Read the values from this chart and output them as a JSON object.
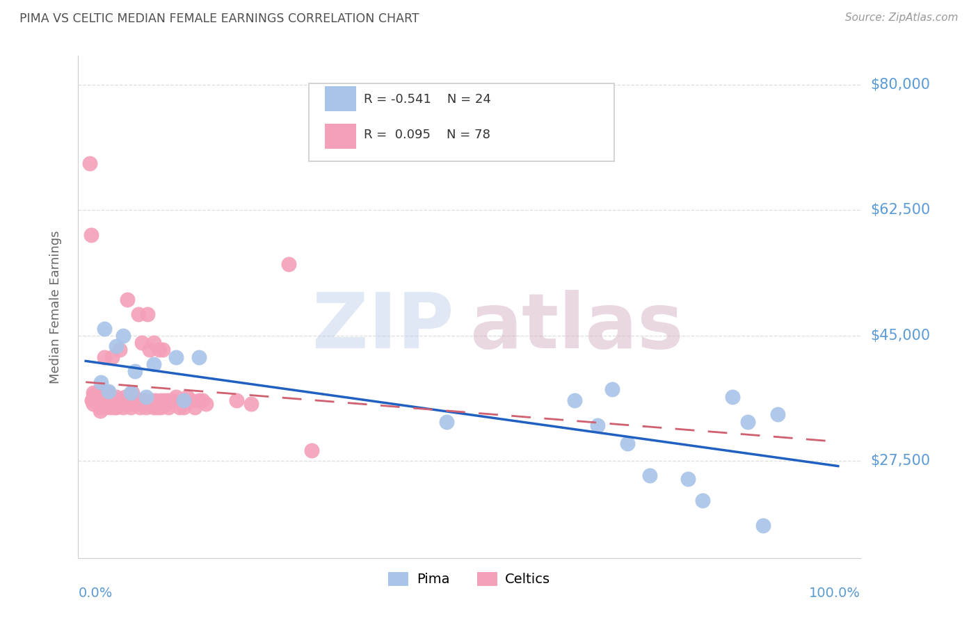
{
  "title": "PIMA VS CELTIC MEDIAN FEMALE EARNINGS CORRELATION CHART",
  "source": "Source: ZipAtlas.com",
  "ylabel": "Median Female Earnings",
  "ytick_labels": [
    "$27,500",
    "$45,000",
    "$62,500",
    "$80,000"
  ],
  "ytick_values": [
    27500,
    45000,
    62500,
    80000
  ],
  "ymin": 14000,
  "ymax": 84000,
  "xmin": -0.01,
  "xmax": 1.03,
  "pima_color": "#a8c4e8",
  "celtics_color": "#f4a0b8",
  "pima_R": -0.541,
  "pima_N": 24,
  "celtics_R": 0.095,
  "celtics_N": 78,
  "grid_color": "#dddddd",
  "background_color": "#ffffff",
  "axis_label_color": "#5b9bd5",
  "title_color": "#505050",
  "pima_x": [
    0.02,
    0.025,
    0.03,
    0.04,
    0.05,
    0.06,
    0.065,
    0.08,
    0.09,
    0.12,
    0.13,
    0.15,
    0.48,
    0.65,
    0.68,
    0.7,
    0.72,
    0.75,
    0.8,
    0.82,
    0.86,
    0.88,
    0.9,
    0.92
  ],
  "pima_y": [
    38500,
    46000,
    37200,
    43500,
    45000,
    37000,
    40000,
    36500,
    41000,
    42000,
    36000,
    42000,
    33000,
    36000,
    32500,
    37500,
    30000,
    25500,
    25000,
    22000,
    36500,
    33000,
    18500,
    34000
  ],
  "celtics_x": [
    0.005,
    0.007,
    0.008,
    0.009,
    0.01,
    0.01,
    0.01,
    0.01,
    0.012,
    0.015,
    0.016,
    0.018,
    0.019,
    0.02,
    0.02,
    0.022,
    0.023,
    0.025,
    0.025,
    0.027,
    0.028,
    0.03,
    0.03,
    0.032,
    0.035,
    0.035,
    0.038,
    0.04,
    0.04,
    0.042,
    0.045,
    0.048,
    0.05,
    0.05,
    0.052,
    0.055,
    0.058,
    0.06,
    0.06,
    0.062,
    0.065,
    0.068,
    0.07,
    0.07,
    0.072,
    0.075,
    0.078,
    0.08,
    0.082,
    0.085,
    0.088,
    0.09,
    0.09,
    0.092,
    0.095,
    0.098,
    0.1,
    0.1,
    0.102,
    0.105,
    0.108,
    0.11,
    0.11,
    0.115,
    0.12,
    0.125,
    0.13,
    0.13,
    0.135,
    0.14,
    0.145,
    0.15,
    0.155,
    0.16,
    0.2,
    0.22,
    0.27,
    0.3
  ],
  "celtics_y": [
    69000,
    59000,
    36000,
    36000,
    37000,
    36500,
    36000,
    35500,
    36800,
    37000,
    36500,
    35000,
    34500,
    37200,
    36000,
    35500,
    36000,
    42000,
    35000,
    35200,
    36000,
    37000,
    35500,
    35000,
    42000,
    36500,
    35000,
    36500,
    35000,
    36000,
    43000,
    35500,
    36000,
    35000,
    36500,
    50000,
    35500,
    36000,
    35000,
    37000,
    35500,
    36000,
    48000,
    36000,
    35000,
    44000,
    36000,
    35000,
    48000,
    43000,
    36000,
    35000,
    44000,
    36000,
    35000,
    43000,
    36000,
    35000,
    43000,
    36000,
    35500,
    36000,
    35000,
    36000,
    36500,
    35000,
    36000,
    35000,
    36500,
    36000,
    35000,
    36000,
    36000,
    35500,
    36000,
    35500,
    55000,
    29000
  ]
}
